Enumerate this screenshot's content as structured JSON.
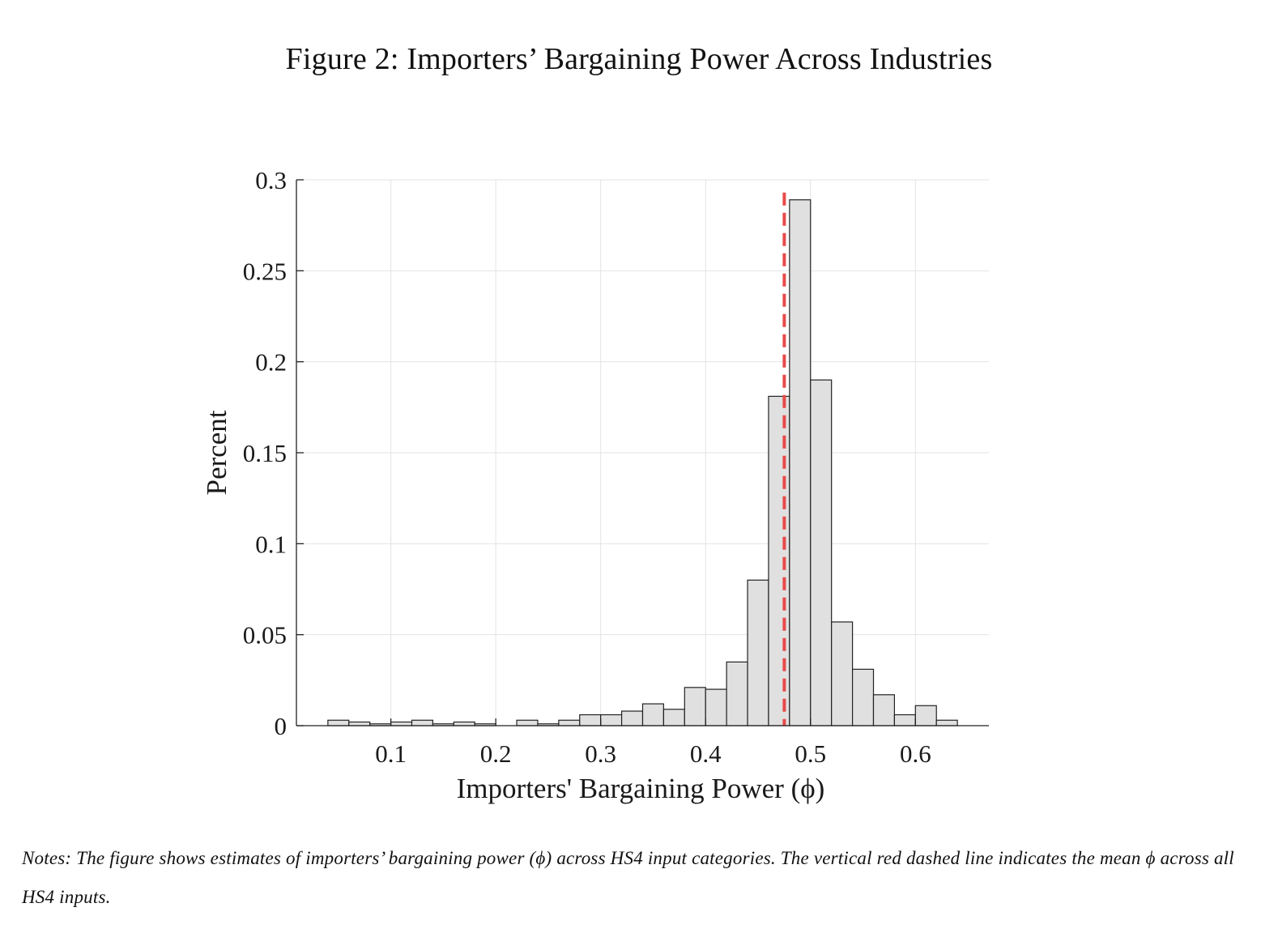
{
  "figure": {
    "title": "Figure 2: Importers’ Bargaining Power Across Industries",
    "notes": "Notes: The figure shows estimates of importers’ bargaining power (ϕ) across HS4 input categories. The vertical red dashed line indicates the mean ϕ across all HS4 inputs."
  },
  "chart_data": {
    "type": "bar",
    "title": "",
    "xlabel": "Importers' Bargaining Power (ϕ)",
    "ylabel": "Percent",
    "xlim": [
      0.01,
      0.67
    ],
    "ylim": [
      0,
      0.3
    ],
    "xticks": [
      0.1,
      0.2,
      0.3,
      0.4,
      0.5,
      0.6
    ],
    "xtick_labels": [
      "0.1",
      "0.2",
      "0.3",
      "0.4",
      "0.5",
      "0.6"
    ],
    "yticks": [
      0,
      0.05,
      0.1,
      0.15,
      0.2,
      0.25,
      0.3
    ],
    "ytick_labels": [
      "0",
      "0.05",
      "0.1",
      "0.15",
      "0.2",
      "0.25",
      "0.3"
    ],
    "grid": true,
    "bin_width": 0.02,
    "bin_edges": [
      0.04,
      0.06,
      0.08,
      0.1,
      0.12,
      0.14,
      0.16,
      0.18,
      0.2,
      0.22,
      0.24,
      0.26,
      0.28,
      0.3,
      0.32,
      0.34,
      0.36,
      0.38,
      0.4,
      0.42,
      0.44,
      0.46,
      0.48,
      0.5,
      0.52,
      0.54,
      0.56,
      0.58,
      0.6,
      0.62,
      0.64
    ],
    "values": [
      0.003,
      0.002,
      0.001,
      0.002,
      0.003,
      0.001,
      0.002,
      0.001,
      0.0,
      0.003,
      0.001,
      0.003,
      0.006,
      0.006,
      0.008,
      0.012,
      0.009,
      0.021,
      0.02,
      0.035,
      0.08,
      0.181,
      0.289,
      0.19,
      0.057,
      0.031,
      0.017,
      0.006,
      0.011,
      0.003
    ],
    "bar_color": "#e0e0e0",
    "bar_edge_color": "#222222",
    "mean_line": {
      "x": 0.475,
      "color": "#e84a4a",
      "style": "dashed"
    }
  }
}
